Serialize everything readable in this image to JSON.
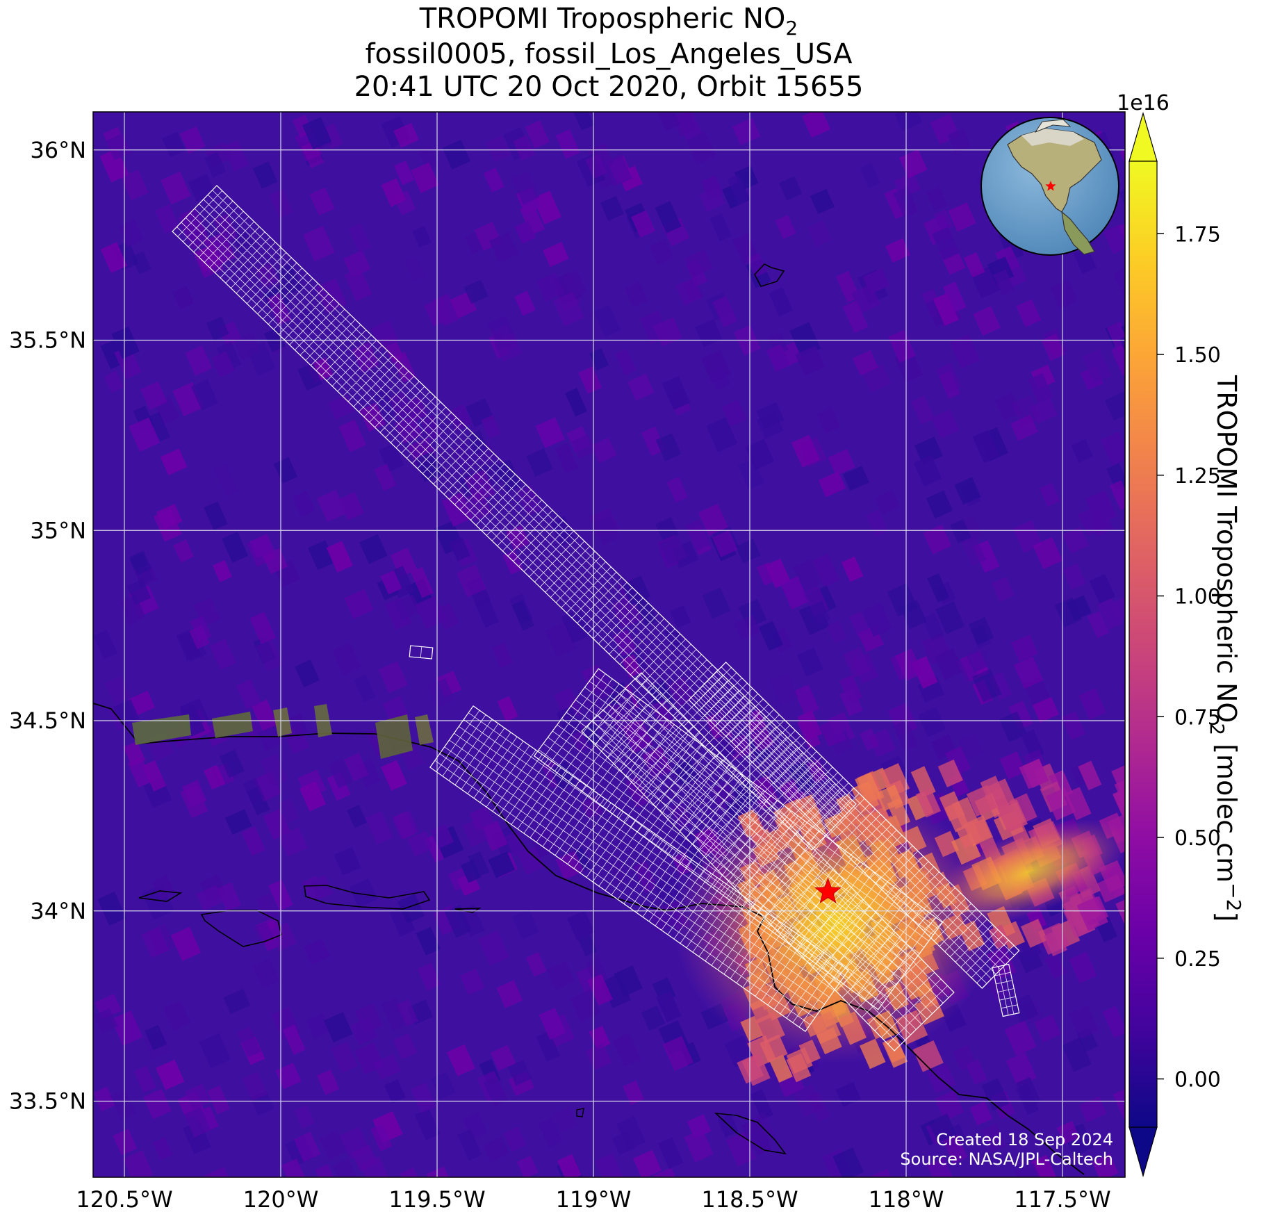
{
  "title": {
    "line1": "TROPOMI Tropospheric NO",
    "line1_sub": "2",
    "line2": "fossil0005, fossil_Los_Angeles_USA",
    "line3": "20:41 UTC 20 Oct 2020, Orbit 15655"
  },
  "map": {
    "lon_range": [
      -120.6,
      -117.3
    ],
    "lat_range": [
      33.3,
      36.1
    ],
    "lon_ticks": [
      {
        "value": -120.5,
        "label": "120.5°W"
      },
      {
        "value": -120.0,
        "label": "120°W"
      },
      {
        "value": -119.5,
        "label": "119.5°W"
      },
      {
        "value": -119.0,
        "label": "119°W"
      },
      {
        "value": -118.5,
        "label": "118.5°W"
      },
      {
        "value": -118.0,
        "label": "118°W"
      },
      {
        "value": -117.5,
        "label": "117.5°W"
      }
    ],
    "lat_ticks": [
      {
        "value": 36.0,
        "label": "36°N"
      },
      {
        "value": 35.5,
        "label": "35.5°N"
      },
      {
        "value": 35.0,
        "label": "35°N"
      },
      {
        "value": 34.5,
        "label": "34.5°N"
      },
      {
        "value": 34.0,
        "label": "34°N"
      },
      {
        "value": 33.5,
        "label": "33.5°N"
      }
    ],
    "target": {
      "name": "fossil_Los_Angeles_USA",
      "lon": -118.25,
      "lat": 34.05,
      "marker": "star",
      "color": "#ff0000"
    },
    "credit_line1": "Created 18 Sep 2024",
    "credit_line2": "Source: NASA/JPL-Caltech",
    "inset_globe": "globe-icon"
  },
  "colorbar": {
    "colormap": "plasma",
    "multiplier": "1e16",
    "label": "TROPOMI Tropospheric NO",
    "label_sub": "2",
    "label_units": " [molec cm",
    "label_units_sup": "−2",
    "label_close": "]",
    "range": [
      -0.1,
      1.9
    ],
    "extend": "both",
    "ticks": [
      "0.00",
      "0.25",
      "0.50",
      "0.75",
      "1.00",
      "1.25",
      "1.50",
      "1.75"
    ],
    "tick_values": [
      0.0,
      0.25,
      0.5,
      0.75,
      1.0,
      1.25,
      1.5,
      1.75
    ],
    "low_color": "#0d0887",
    "high_color": "#f0f921"
  }
}
